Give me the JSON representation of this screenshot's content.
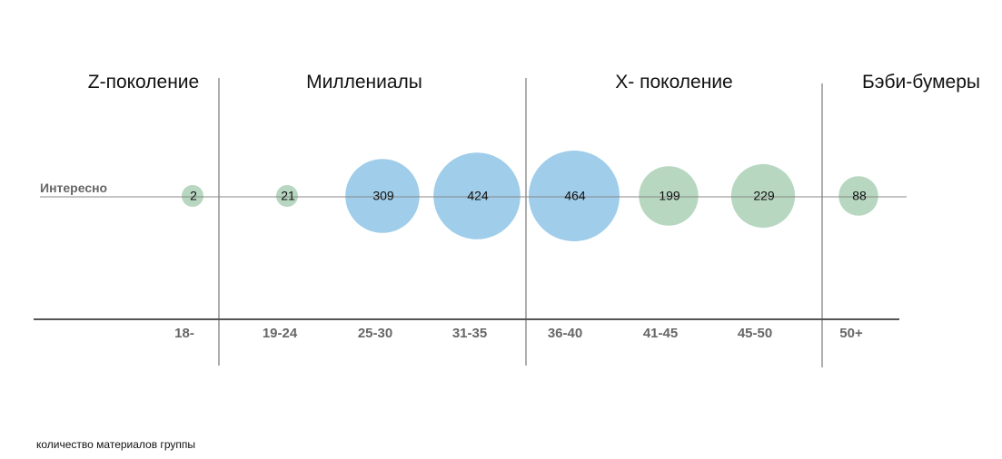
{
  "chart_data": {
    "type": "bubble",
    "row_label": "Интересно",
    "categories": [
      "18-",
      "19-24",
      "25-30",
      "31-35",
      "36-40",
      "41-45",
      "45-50",
      "50+"
    ],
    "values": [
      2,
      21,
      309,
      424,
      464,
      199,
      229,
      88
    ],
    "highlighted": [
      false,
      false,
      true,
      true,
      true,
      false,
      false,
      false
    ],
    "generations": [
      "Z-поколение",
      "Миллениалы",
      "X- поколение",
      "Бэби-бумеры"
    ],
    "colors": {
      "default": "#b7d7c0",
      "highlight": "#9fcdea",
      "axis": "#555555",
      "guide": "#888888"
    }
  },
  "caption": "количество материалов группы"
}
